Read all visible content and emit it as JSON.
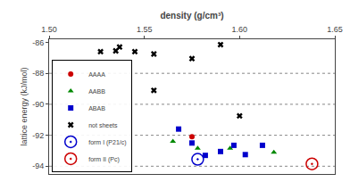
{
  "chart_data": {
    "type": "scatter",
    "xlabel": "density (g/cm³)",
    "ylabel": "lattice energy (kJ/mol)",
    "xlim": [
      1.5,
      1.65
    ],
    "ylim": [
      -94.5,
      -85.8
    ],
    "xticks": [
      {
        "value": 1.5,
        "label": "1.50"
      },
      1.55,
      {
        "value": 1.6,
        "label": "1.60"
      },
      1.65
    ],
    "yticks": [
      -94,
      -92,
      -90,
      -88,
      -86
    ],
    "hlines": [
      -88.0,
      -90.0,
      -92.0,
      -94.0
    ],
    "grid": false,
    "legend": "lower left",
    "background_color": "#ffffff",
    "series": [
      {
        "name": "AAAA",
        "color": "#cc0000",
        "marker": "circle",
        "x": [
          1.575
        ],
        "values": [
          -92.1
        ]
      },
      {
        "name": "AABB",
        "color": "#008800",
        "marker": "triangle-up",
        "x": [
          1.565,
          1.578,
          1.595,
          1.618
        ],
        "values": [
          -92.4,
          -92.85,
          -92.85,
          -93.1
        ]
      },
      {
        "name": "ABAB",
        "color": "#0000cc",
        "marker": "square",
        "x": [
          1.568,
          1.575,
          1.582,
          1.59,
          1.597,
          1.603,
          1.612
        ],
        "values": [
          -91.6,
          -92.5,
          -93.3,
          -93.05,
          -92.65,
          -93.25,
          -92.65
        ]
      },
      {
        "name": "not sheets",
        "color": "#000000",
        "marker": "x",
        "x": [
          1.527,
          1.535,
          1.537,
          1.545,
          1.555,
          1.575,
          1.59,
          1.555,
          1.6
        ],
        "values": [
          -86.6,
          -86.55,
          -86.3,
          -86.6,
          -86.75,
          -87.05,
          -86.15,
          -89.1,
          -90.75
        ]
      },
      {
        "name": "form I (P21/c)",
        "color": "#0000cc",
        "marker": "circle-open-dot",
        "x": [
          1.578
        ],
        "values": [
          -93.55
        ]
      },
      {
        "name": "form II (Pc)",
        "color": "#cc0000",
        "marker": "circle-open-dot",
        "x": [
          1.638
        ],
        "values": [
          -93.85
        ]
      }
    ]
  }
}
